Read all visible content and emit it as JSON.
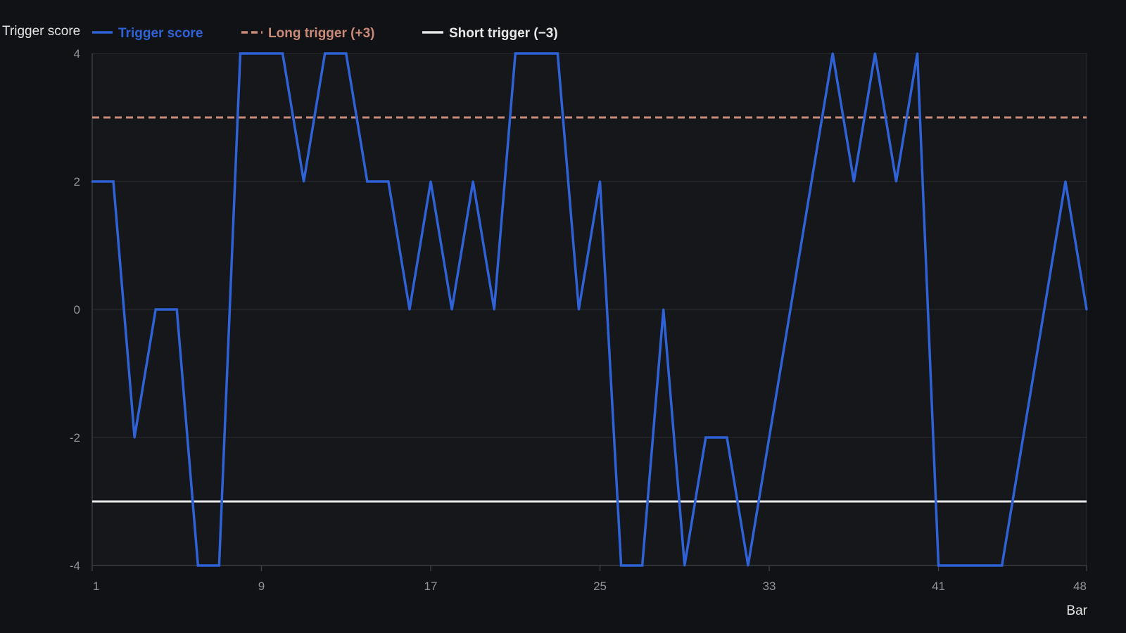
{
  "colors": {
    "background": "#111215",
    "plot_background": "#16171b",
    "grid": "#2a2c31",
    "axis": "#3a3d44",
    "tick_text": "#8f939a",
    "trigger_score": "#2f62d6",
    "long_trigger": "#c98a78",
    "short_trigger": "#e8e8e8"
  },
  "chart_data": {
    "type": "line",
    "title": "",
    "xlabel": "Bar",
    "ylabel": "Trigger score",
    "xlim": [
      1,
      48
    ],
    "ylim": [
      -4,
      4
    ],
    "x_ticks": [
      1,
      9,
      17,
      25,
      33,
      41,
      48
    ],
    "y_ticks": [
      -4,
      -2,
      0,
      2,
      4
    ],
    "grid": true,
    "legend_position": "top",
    "x": [
      1,
      2,
      3,
      4,
      5,
      6,
      7,
      8,
      9,
      10,
      11,
      12,
      13,
      14,
      15,
      16,
      17,
      18,
      19,
      20,
      21,
      22,
      23,
      24,
      25,
      26,
      27,
      28,
      29,
      30,
      31,
      32,
      33,
      34,
      35,
      36,
      37,
      38,
      39,
      40,
      41,
      42,
      43,
      44,
      45,
      46,
      47,
      48
    ],
    "series": [
      {
        "name": "Trigger score",
        "style": "solid",
        "color": "#2f62d6",
        "values": [
          2,
          2,
          -2,
          0,
          0,
          -4,
          -4,
          4,
          4,
          4,
          2,
          4,
          4,
          2,
          2,
          0,
          2,
          0,
          2,
          0,
          4,
          4,
          4,
          0,
          2,
          -4,
          -4,
          0,
          -4,
          -2,
          -2,
          -4,
          -2,
          0,
          2,
          4,
          2,
          4,
          2,
          4,
          -4,
          -4,
          -4,
          -4,
          -2,
          0,
          2,
          0
        ]
      },
      {
        "name": "Long trigger (+3)",
        "style": "dashed",
        "color": "#c98a78",
        "threshold": 3
      },
      {
        "name": "Short trigger (−3)",
        "style": "solid",
        "color": "#e8e8e8",
        "threshold": -3
      }
    ]
  }
}
